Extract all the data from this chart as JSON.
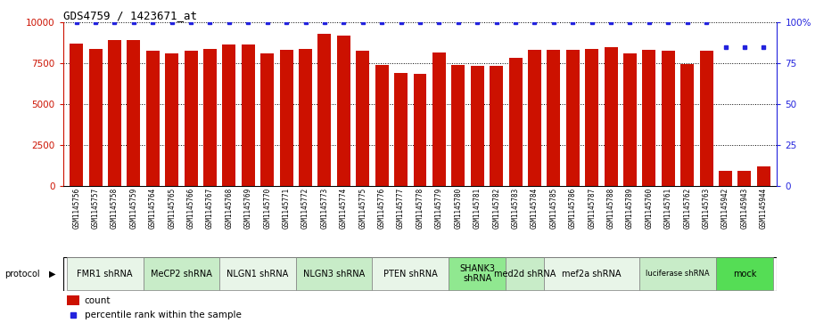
{
  "title": "GDS4759 / 1423671_at",
  "samples": [
    "GSM1145756",
    "GSM1145757",
    "GSM1145758",
    "GSM1145759",
    "GSM1145764",
    "GSM1145765",
    "GSM1145766",
    "GSM1145767",
    "GSM1145768",
    "GSM1145769",
    "GSM1145770",
    "GSM1145771",
    "GSM1145772",
    "GSM1145773",
    "GSM1145774",
    "GSM1145775",
    "GSM1145776",
    "GSM1145777",
    "GSM1145778",
    "GSM1145779",
    "GSM1145780",
    "GSM1145781",
    "GSM1145782",
    "GSM1145783",
    "GSM1145784",
    "GSM1145785",
    "GSM1145786",
    "GSM1145787",
    "GSM1145788",
    "GSM1145789",
    "GSM1145760",
    "GSM1145761",
    "GSM1145762",
    "GSM1145763",
    "GSM1145942",
    "GSM1145943",
    "GSM1145944"
  ],
  "counts": [
    8700,
    8400,
    8950,
    8950,
    8300,
    8100,
    8300,
    8400,
    8650,
    8650,
    8100,
    8350,
    8400,
    9300,
    9200,
    8300,
    7400,
    6900,
    6850,
    8150,
    7400,
    7350,
    7350,
    7850,
    8350,
    8350,
    8350,
    8400,
    8500,
    8100,
    8350,
    8250,
    7450,
    8250,
    900,
    900,
    1200
  ],
  "percentiles": [
    100,
    100,
    100,
    100,
    100,
    100,
    100,
    100,
    100,
    100,
    100,
    100,
    100,
    100,
    100,
    100,
    100,
    100,
    100,
    100,
    100,
    100,
    100,
    100,
    100,
    100,
    100,
    100,
    100,
    100,
    100,
    100,
    100,
    100,
    85,
    85,
    85
  ],
  "protocols": [
    {
      "label": "FMR1 shRNA",
      "start": 0,
      "end": 4,
      "color": "#e8f5e8"
    },
    {
      "label": "MeCP2 shRNA",
      "start": 4,
      "end": 8,
      "color": "#c8ecc8"
    },
    {
      "label": "NLGN1 shRNA",
      "start": 8,
      "end": 12,
      "color": "#e8f5e8"
    },
    {
      "label": "NLGN3 shRNA",
      "start": 12,
      "end": 16,
      "color": "#c8ecc8"
    },
    {
      "label": "PTEN shRNA",
      "start": 16,
      "end": 20,
      "color": "#e8f5e8"
    },
    {
      "label": "SHANK3\nshRNA",
      "start": 20,
      "end": 23,
      "color": "#90e890"
    },
    {
      "label": "med2d shRNA",
      "start": 23,
      "end": 25,
      "color": "#c8ecc8"
    },
    {
      "label": "mef2a shRNA",
      "start": 25,
      "end": 30,
      "color": "#e8f5e8"
    },
    {
      "label": "luciferase shRNA",
      "start": 30,
      "end": 34,
      "color": "#c8ecc8"
    },
    {
      "label": "mock",
      "start": 34,
      "end": 37,
      "color": "#55dd55"
    }
  ],
  "bar_color": "#cc1100",
  "dot_color": "#2222dd",
  "ylim_left": [
    0,
    10000
  ],
  "ylim_right": [
    0,
    100
  ],
  "yticks_left": [
    0,
    2500,
    5000,
    7500,
    10000
  ],
  "ytick_labels_left": [
    "0",
    "2500",
    "5000",
    "7500",
    "10000"
  ],
  "yticks_right": [
    0,
    25,
    50,
    75,
    100
  ],
  "ytick_labels_right": [
    "0",
    "25",
    "50",
    "75",
    "100%"
  ],
  "plot_bg": "#ffffff",
  "xtick_bg": "#d8d8d8"
}
